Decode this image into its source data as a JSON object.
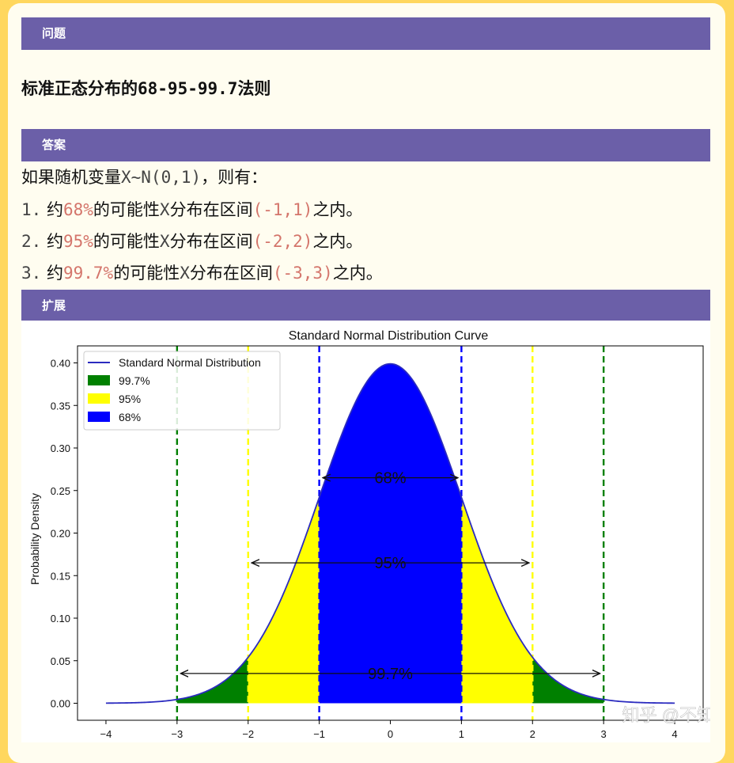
{
  "sections": {
    "question_label": "问题",
    "answer_label": "答案",
    "extension_label": "扩展"
  },
  "question": {
    "title_cn": "标准正态分布的",
    "title_rule": "68-95-99.7",
    "title_tail": "法则"
  },
  "answer": {
    "intro_pre": "如果随机变量",
    "intro_dist": "X~N(0,1)",
    "intro_post": "，则有：",
    "items": [
      {
        "num": "1.",
        "pre": "约",
        "pct": "68%",
        "mid": "的可能性",
        "var": "X",
        "post1": "分布在区间",
        "interval": "(-1,1)",
        "post2": "之内。"
      },
      {
        "num": "2.",
        "pre": "约",
        "pct": "95%",
        "mid": "的可能性",
        "var": "X",
        "post1": "分布在区间",
        "interval": "(-2,2)",
        "post2": "之内。"
      },
      {
        "num": "3.",
        "pre": "约",
        "pct": "99.7%",
        "mid": "的可能性",
        "var": "X",
        "post1": "分布在区间",
        "interval": "(-3,3)",
        "post2": "之内。"
      }
    ]
  },
  "watermark": "知乎 @不知",
  "chart_data": {
    "type": "area",
    "title": "Standard Normal Distribution Curve",
    "xlabel": "",
    "ylabel": "Probability Density",
    "xlim": [
      -4.4,
      4.4
    ],
    "ylim": [
      -0.02,
      0.42
    ],
    "xticks": [
      -4,
      -3,
      -2,
      -1,
      0,
      1,
      2,
      3,
      4
    ],
    "xtick_labels": [
      "−4",
      "−3",
      "−2",
      "−1",
      "0",
      "1",
      "2",
      "3",
      "4"
    ],
    "yticks": [
      0.0,
      0.05,
      0.1,
      0.15,
      0.2,
      0.25,
      0.3,
      0.35,
      0.4
    ],
    "ytick_labels": [
      "0.00",
      "0.05",
      "0.10",
      "0.15",
      "0.20",
      "0.25",
      "0.30",
      "0.35",
      "0.40"
    ],
    "curve": {
      "name": "Standard Normal Distribution",
      "mean": 0,
      "sd": 1,
      "x_range": [
        -4,
        4
      ],
      "color": "#2b2bbf"
    },
    "regions": [
      {
        "name": "99.7%",
        "from": -3,
        "to": 3,
        "color": "#008000"
      },
      {
        "name": "95%",
        "from": -2,
        "to": 2,
        "color": "#ffff00"
      },
      {
        "name": "68%",
        "from": -1,
        "to": 1,
        "color": "#0000ff"
      }
    ],
    "vlines": [
      {
        "x": -3,
        "color": "#008000"
      },
      {
        "x": 3,
        "color": "#008000"
      },
      {
        "x": -2,
        "color": "#ffff00"
      },
      {
        "x": 2,
        "color": "#ffff00"
      },
      {
        "x": -1,
        "color": "#0000ff"
      },
      {
        "x": 1,
        "color": "#0000ff"
      }
    ],
    "annotations": [
      {
        "text": "68%",
        "from": -0.95,
        "to": 0.95,
        "y": 0.265
      },
      {
        "text": "95%",
        "from": -1.95,
        "to": 1.95,
        "y": 0.165
      },
      {
        "text": "99.7%",
        "from": -2.95,
        "to": 2.95,
        "y": 0.035
      }
    ],
    "legend": {
      "placement": "top-left",
      "entries": [
        "Standard Normal Distribution",
        "99.7%",
        "95%",
        "68%"
      ]
    },
    "grid": false
  }
}
